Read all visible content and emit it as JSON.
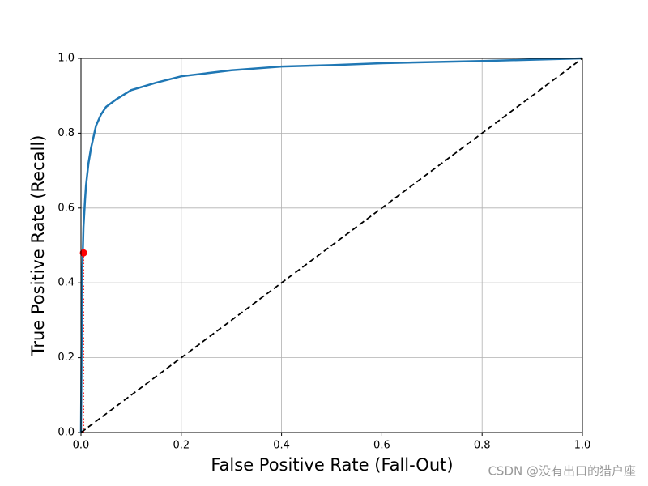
{
  "chart_data": {
    "type": "line",
    "xlabel": "False Positive Rate (Fall-Out)",
    "ylabel": "True Positive Rate (Recall)",
    "xlim": [
      0,
      1
    ],
    "ylim": [
      0,
      1
    ],
    "xticks": [
      {
        "value": 0,
        "label": "0.0"
      },
      0.2,
      0.4,
      0.6,
      0.8,
      {
        "value": 1,
        "label": "1.0"
      }
    ],
    "yticks": [
      {
        "value": 0,
        "label": "0.0"
      },
      0.2,
      0.4,
      0.6,
      0.8,
      {
        "value": 1,
        "label": "1.0"
      }
    ],
    "grid": true,
    "series": [
      {
        "color": "#1f77b4",
        "style": "solid",
        "width": 2.5,
        "x": [
          0,
          0.002,
          0.005,
          0.008,
          0.01,
          0.015,
          0.02,
          0.03,
          0.04,
          0.05,
          0.07,
          0.1,
          0.15,
          0.2,
          0.3,
          0.4,
          0.5,
          0.6,
          0.8,
          1.0
        ],
        "values": [
          0,
          0.4,
          0.55,
          0.62,
          0.66,
          0.72,
          0.76,
          0.82,
          0.85,
          0.87,
          0.89,
          0.915,
          0.935,
          0.952,
          0.968,
          0.978,
          0.982,
          0.987,
          0.993,
          1.0
        ]
      },
      {
        "color": "#000000",
        "style": "dashed",
        "width": 1.8,
        "x": [
          0,
          1
        ],
        "values": [
          0,
          1
        ]
      },
      {
        "color": "#ff0000",
        "style": "dotted",
        "width": 1.5,
        "x": [
          0.005,
          0.005
        ],
        "values": [
          0,
          0.48
        ]
      },
      {
        "color": "#ff0000",
        "style": "marker",
        "x": [
          0.005
        ],
        "values": [
          0.48
        ]
      }
    ],
    "watermark": "CSDN @没有出口的猎户座"
  }
}
